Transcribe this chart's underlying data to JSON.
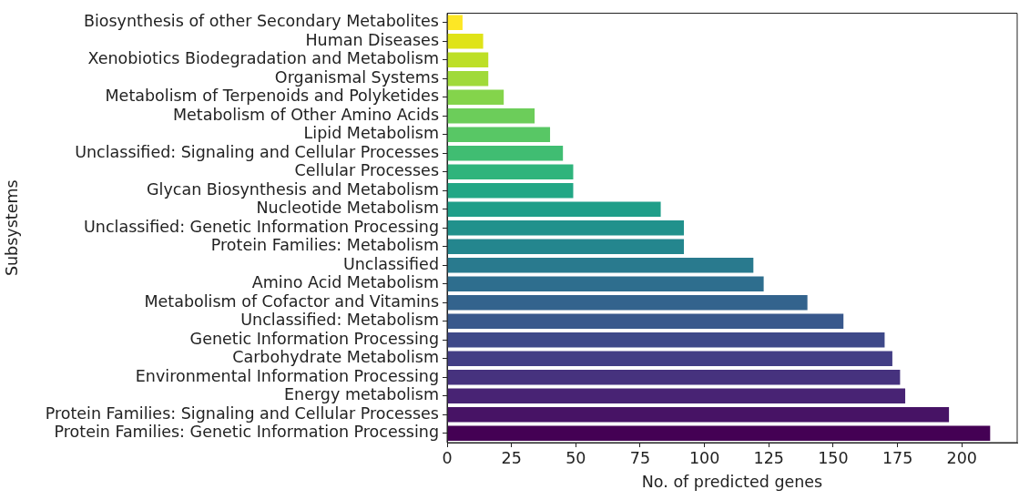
{
  "chart_data": {
    "type": "bar",
    "orientation": "horizontal",
    "xlabel": "No. of predicted genes",
    "ylabel": "Subsystems",
    "categories": [
      "Biosynthesis of other Secondary Metabolites",
      "Human Diseases",
      "Xenobiotics Biodegradation and Metabolism",
      "Organismal Systems",
      "Metabolism of Terpenoids and Polyketides",
      "Metabolism of Other Amino Acids",
      "Lipid Metabolism",
      "Unclassified: Signaling and Cellular Processes",
      "Cellular Processes",
      "Glycan Biosynthesis and Metabolism",
      "Nucleotide Metabolism",
      "Unclassified: Genetic Information Processing",
      "Protein Families: Metabolism",
      "Unclassified",
      "Amino Acid Metabolism",
      "Metabolism of Cofactor and Vitamins",
      "Unclassified: Metabolism",
      "Genetic Information Processing",
      "Carbohydrate Metabolism",
      "Environmental Information Processing",
      "Energy metabolism",
      "Protein Families: Signaling and Cellular Processes",
      "Protein Families: Genetic Information Processing"
    ],
    "values": [
      6,
      14,
      16,
      16,
      22,
      34,
      40,
      45,
      49,
      49,
      83,
      92,
      92,
      119,
      123,
      140,
      154,
      170,
      173,
      176,
      178,
      195,
      211
    ],
    "colors": [
      "#fde725",
      "#dfe318",
      "#bddf26",
      "#a0da39",
      "#84d44b",
      "#6ccd5a",
      "#58c765",
      "#40bd72",
      "#2fb47c",
      "#22a785",
      "#1f9e89",
      "#21918c",
      "#24868e",
      "#297a8e",
      "#2e6e8e",
      "#33638d",
      "#38588c",
      "#3e4989",
      "#433e85",
      "#46327e",
      "#482374",
      "#471365",
      "#440154"
    ],
    "xlim": [
      0,
      221.5
    ],
    "xticks": [
      0,
      25,
      50,
      75,
      100,
      125,
      150,
      175,
      200
    ],
    "grid": false,
    "legend": false
  }
}
